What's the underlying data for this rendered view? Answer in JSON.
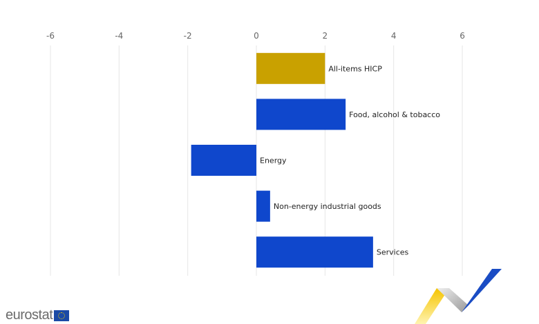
{
  "chart_data": {
    "type": "bar",
    "orientation": "horizontal",
    "categories": [
      "All-items HICP",
      "Food, alcohol & tobacco",
      "Energy",
      "Non-energy industrial goods",
      "Services"
    ],
    "values": [
      2.0,
      2.6,
      -1.9,
      0.4,
      3.4
    ],
    "colors": [
      "#c9a100",
      "#0f47cc",
      "#0f47cc",
      "#0f47cc",
      "#0f47cc"
    ],
    "xlim": [
      -6,
      7
    ],
    "xticks": [
      -6,
      -4,
      -2,
      0,
      2,
      4,
      6
    ],
    "xtick_labels": [
      "-6",
      "-4",
      "-2",
      "0",
      "2",
      "4",
      "6"
    ],
    "axis_position": "top",
    "grid": true,
    "title": "",
    "xlabel": "",
    "ylabel": ""
  },
  "branding": {
    "logo_text": "eurostat"
  }
}
